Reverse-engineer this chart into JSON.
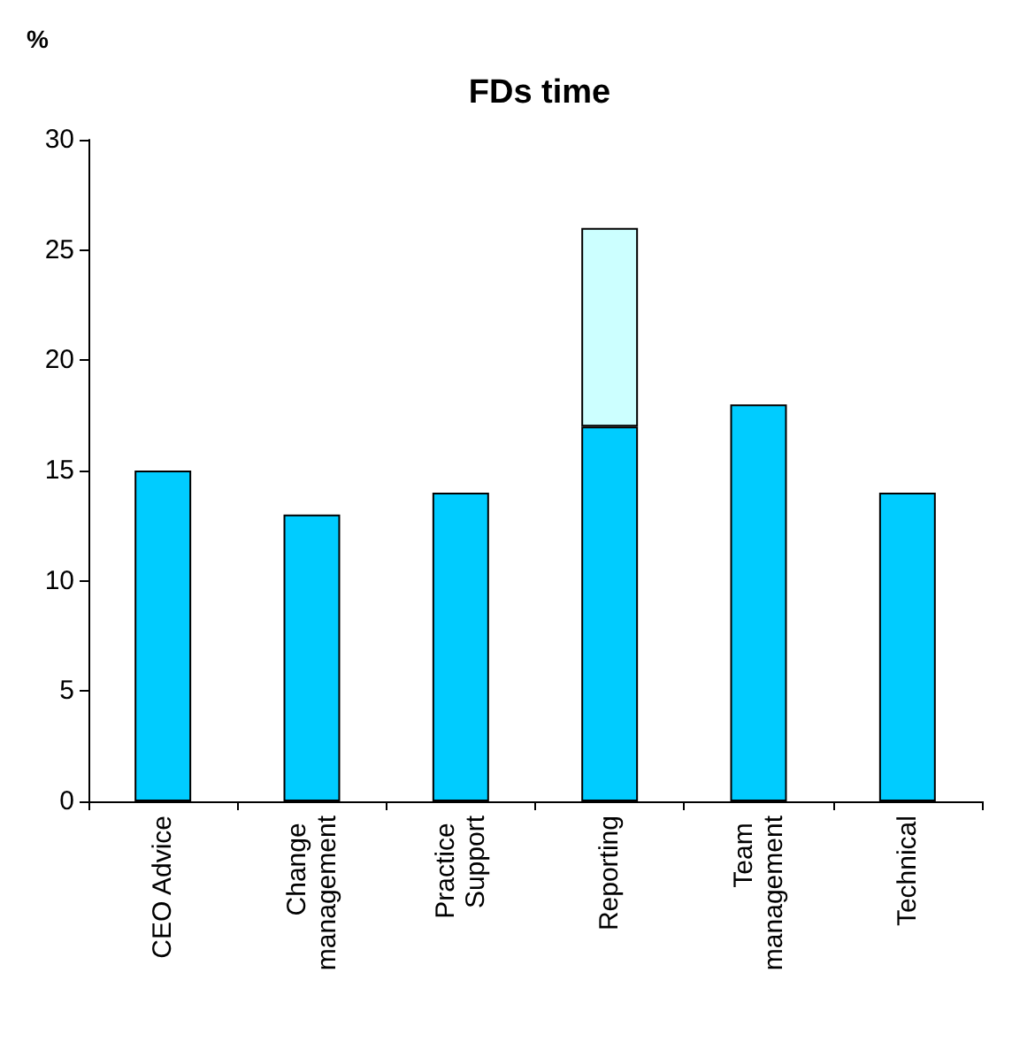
{
  "chart_data": {
    "type": "bar",
    "title": "FDs time",
    "ylabel": "%",
    "categories": [
      "CEO Advice",
      "Change management",
      "Practice Support",
      "Reporting",
      "Team management",
      "Technical"
    ],
    "series": [
      {
        "color": "#00ccff",
        "values": [
          15,
          13,
          14,
          17,
          18,
          14
        ]
      },
      {
        "color": "#ccffff",
        "values": [
          null,
          null,
          null,
          9,
          null,
          null
        ]
      }
    ],
    "stacked": true,
    "ylim": [
      0,
      30
    ],
    "yticks": [
      0,
      5,
      10,
      15,
      20,
      25,
      30
    ],
    "grid": false
  }
}
